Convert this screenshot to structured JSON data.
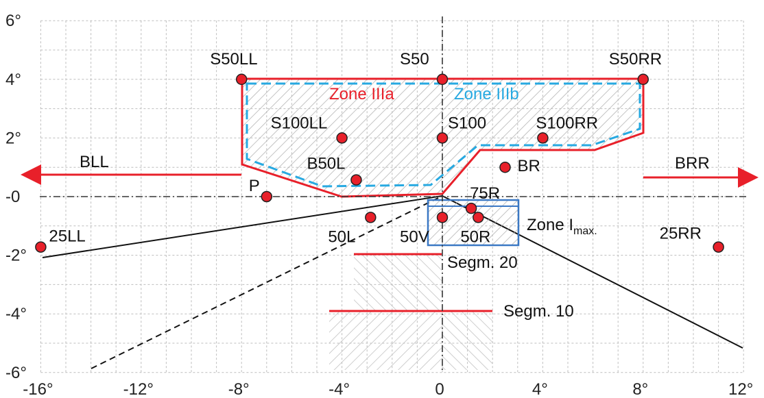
{
  "axes": {
    "x_min": -16,
    "x_max": 12,
    "y_min": -6,
    "y_max": 6,
    "x_ticks": [
      "-16°",
      "-12°",
      "-8°",
      "-4°",
      "0",
      "4°",
      "8°",
      "12°"
    ],
    "y_ticks": [
      "6°",
      "4°",
      "2°",
      "-0",
      "-2°",
      "-4°",
      "-6°"
    ],
    "grid": true,
    "grid_step_minor": 1
  },
  "colors": {
    "point": "#e8202a",
    "zone_a": "#e8202a",
    "zone_b": "#27a9e1",
    "zone_imax": "#3b78c4",
    "grid": "#bdbdbd",
    "axis": "#333333"
  },
  "points": [
    {
      "id": "S50LL",
      "label": "S50LL",
      "x": -8,
      "y": 4
    },
    {
      "id": "S50",
      "label": "S50",
      "x": 0,
      "y": 4
    },
    {
      "id": "S50RR",
      "label": "S50RR",
      "x": 8,
      "y": 4
    },
    {
      "id": "S100LL",
      "label": "S100LL",
      "x": -4,
      "y": 2
    },
    {
      "id": "S100",
      "label": "S100",
      "x": 0,
      "y": 2
    },
    {
      "id": "S100RR",
      "label": "S100RR",
      "x": 4,
      "y": 2
    },
    {
      "id": "B50L",
      "label": "B50L",
      "x": -3.43,
      "y": 0.57
    },
    {
      "id": "BR",
      "label": "BR",
      "x": 2.5,
      "y": 1
    },
    {
      "id": "P",
      "label": "P",
      "x": -7,
      "y": 0
    },
    {
      "id": "75R",
      "label": "75R",
      "x": 1.15,
      "y": -0.4
    },
    {
      "id": "50L",
      "label": "50L",
      "x": -2.86,
      "y": -0.71
    },
    {
      "id": "50V",
      "label": "50V",
      "x": 0,
      "y": -0.71
    },
    {
      "id": "50R",
      "label": "50R",
      "x": 1.43,
      "y": -0.71
    },
    {
      "id": "25LL",
      "label": "25LL",
      "x": -16,
      "y": -1.72
    },
    {
      "id": "25RR",
      "label": "25RR",
      "x": 11,
      "y": -1.72
    }
  ],
  "zones": {
    "zone_a_label": "Zone IIIa",
    "zone_b_label": "Zone IIIb",
    "zone_imax_label": "Zone I",
    "zone_imax_sub": "max."
  },
  "arrows": {
    "bll_label": "BLL",
    "brr_label": "BRR"
  },
  "segments": {
    "seg20_label": "Segm. 20",
    "seg10_label": "Segm. 10"
  }
}
